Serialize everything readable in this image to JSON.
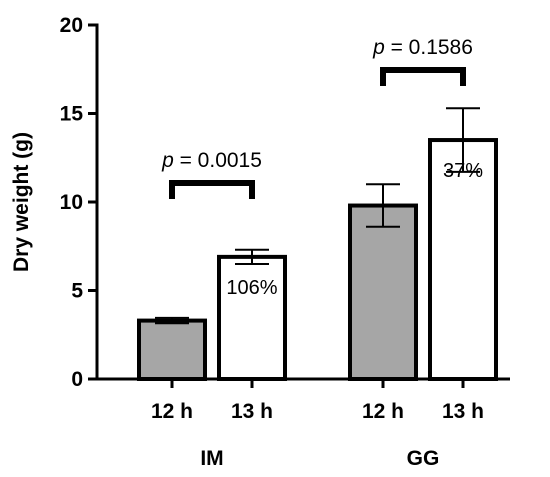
{
  "chart_data": {
    "type": "bar",
    "ylabel": "Dry weight (g)",
    "ylim": [
      0,
      20
    ],
    "yticks": [
      0,
      5,
      10,
      15,
      20
    ],
    "groups": [
      {
        "name": "IM",
        "bars": [
          {
            "label": "12 h",
            "value": 3.3,
            "error": 0.15,
            "color": "#a6a6a6"
          },
          {
            "label": "13 h",
            "value": 6.9,
            "error": 0.4,
            "color": "#ffffff",
            "annotation": "106%"
          }
        ],
        "p_prefix": "p",
        "p_value": " = 0.0015"
      },
      {
        "name": "GG",
        "bars": [
          {
            "label": "12 h",
            "value": 9.8,
            "error": 1.2,
            "color": "#a6a6a6"
          },
          {
            "label": "13 h",
            "value": 13.5,
            "error": 1.8,
            "color": "#ffffff",
            "annotation": "37%"
          }
        ],
        "p_prefix": "p",
        "p_value": " = 0.1586"
      }
    ]
  }
}
